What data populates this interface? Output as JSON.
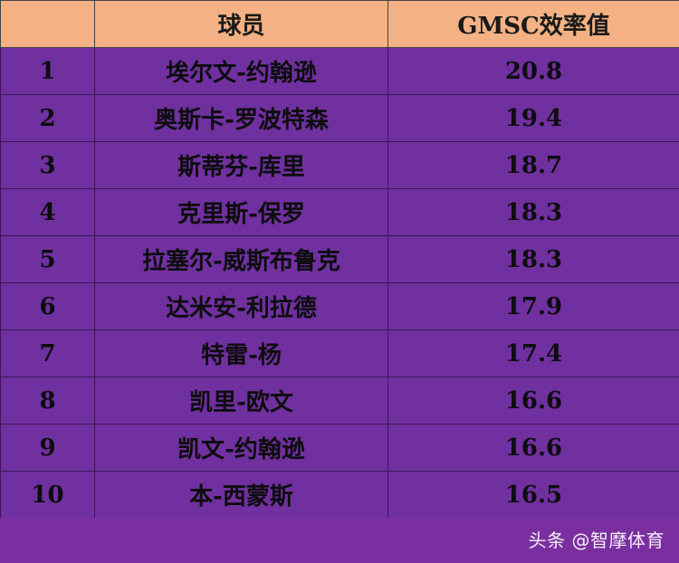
{
  "table": {
    "headers": {
      "rank": "",
      "player": "球员",
      "value": "GMSC效率值"
    },
    "rows": [
      {
        "rank": "1",
        "player": "埃尔文-约翰逊",
        "value": "20.8"
      },
      {
        "rank": "2",
        "player": "奥斯卡-罗波特森",
        "value": "19.4"
      },
      {
        "rank": "3",
        "player": "斯蒂芬-库里",
        "value": "18.7"
      },
      {
        "rank": "4",
        "player": "克里斯-保罗",
        "value": "18.3"
      },
      {
        "rank": "5",
        "player": "拉塞尔-威斯布鲁克",
        "value": "18.3"
      },
      {
        "rank": "6",
        "player": "达米安-利拉德",
        "value": "17.9"
      },
      {
        "rank": "7",
        "player": "特雷-杨",
        "value": "17.4"
      },
      {
        "rank": "8",
        "player": "凯里-欧文",
        "value": "16.6"
      },
      {
        "rank": "9",
        "player": "凯文-约翰逊",
        "value": "16.6"
      },
      {
        "rank": "10",
        "player": "本-西蒙斯",
        "value": "16.5"
      }
    ]
  },
  "watermark": "头条 @智摩体育",
  "colors": {
    "header_bg": "#f4b183",
    "row_bg": "#7030a0",
    "text": "#0d0d0d",
    "watermark": "#ffffff"
  }
}
